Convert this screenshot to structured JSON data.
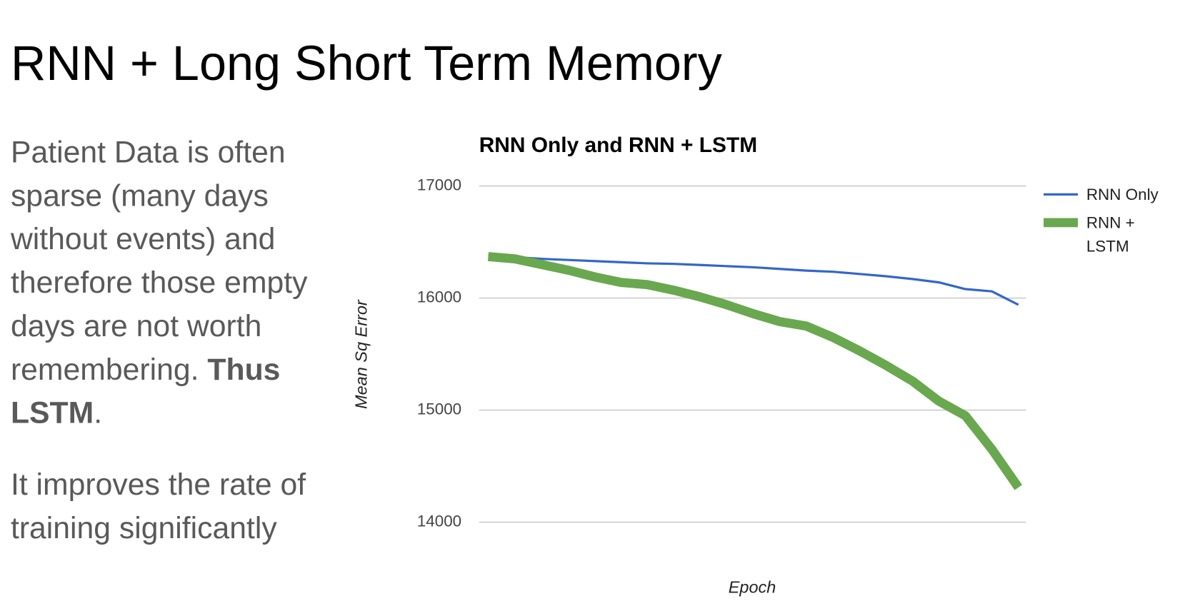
{
  "header": {
    "title": "RNN + Long Short Term Memory"
  },
  "body": {
    "paragraphs": [
      {
        "lines": [
          "Patient Data is often",
          "sparse (many days",
          "without events) and",
          "therefore those empty",
          "days are not worth",
          "remembering."
        ],
        "bold": [
          "Thus",
          "LSTM"
        ],
        "end": "."
      },
      {
        "lines": [
          "It improves the rate of",
          "training significantly"
        ]
      }
    ]
  },
  "chart_data": {
    "type": "line",
    "title": "RNN Only and RNN + LSTM",
    "x_label": "Epoch",
    "y_label": "Mean Sq Error",
    "categories": [
      null,
      null,
      null,
      null,
      null,
      null,
      null,
      null,
      null,
      null,
      null,
      null,
      null,
      null,
      null,
      null,
      null,
      null,
      null,
      null,
      null
    ],
    "series": [
      {
        "name": "RNN Only",
        "color": "#3366cc",
        "width": 3,
        "values": [
          16380,
          16365,
          16350,
          16340,
          16330,
          16320,
          16310,
          16305,
          16295,
          16285,
          16275,
          16260,
          16245,
          16235,
          16215,
          16195,
          16170,
          16140,
          16080,
          16060,
          15940
        ]
      },
      {
        "name": "RNN + LSTM",
        "color": "#6aa84f",
        "width": 12,
        "values": [
          16370,
          16350,
          16300,
          16250,
          16190,
          16140,
          16120,
          16070,
          16010,
          15940,
          15860,
          15790,
          15750,
          15650,
          15530,
          15400,
          15260,
          15080,
          14950,
          14650,
          14310
        ]
      }
    ],
    "ylim": [
      14000,
      17000
    ],
    "yticks": [
      14000,
      15000,
      16000,
      17000
    ],
    "grid": true,
    "legend": "right"
  }
}
